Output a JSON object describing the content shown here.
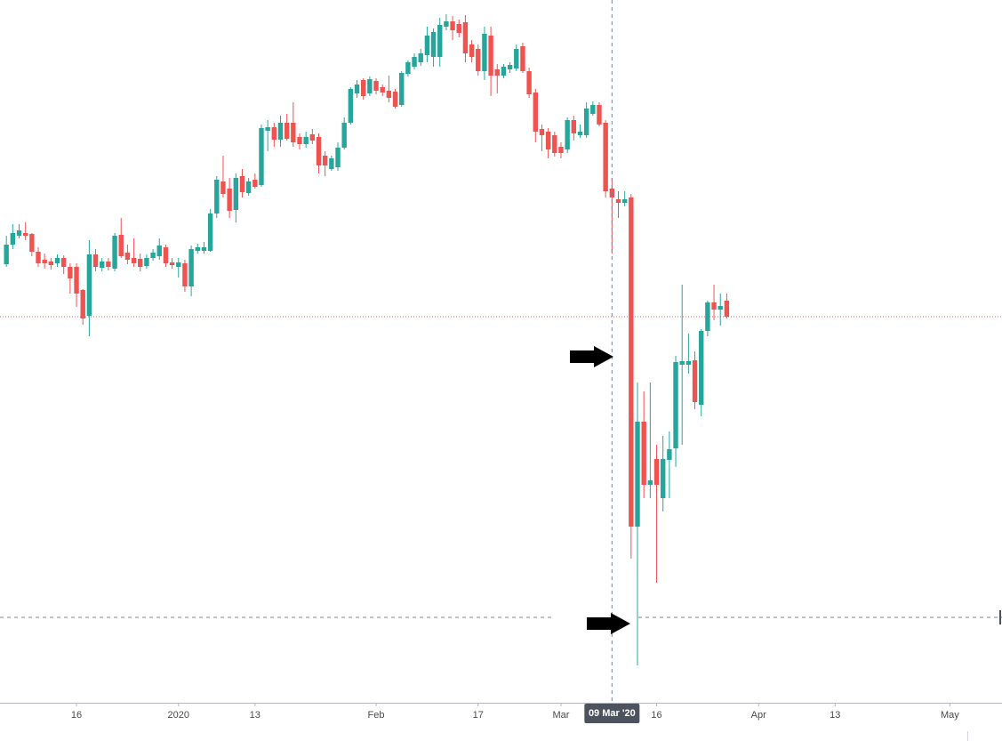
{
  "chart_data": {
    "type": "candlestick",
    "up_color": "#26a69a",
    "down_color": "#ef5350",
    "xlim": [
      -12,
      145.18
    ],
    "ylim": [
      10,
      800
    ],
    "xticks": [
      {
        "value": 0,
        "label": "16"
      },
      {
        "value": 16,
        "label": "2020"
      },
      {
        "value": 28,
        "label": "13"
      },
      {
        "value": 47,
        "label": "Feb"
      },
      {
        "value": 63,
        "label": "17"
      },
      {
        "value": 76,
        "label": "Mar"
      },
      {
        "value": 91,
        "label": "16"
      },
      {
        "value": 107,
        "label": "Apr"
      },
      {
        "value": 119,
        "label": "13"
      },
      {
        "value": 137,
        "label": "May"
      }
    ],
    "crosshair": {
      "x": 84,
      "y": 106,
      "label": "09 Mar '20"
    },
    "x": [
      -11,
      -10,
      -9,
      -8,
      -7,
      -6,
      -5,
      -4,
      -3,
      -2,
      -1,
      0,
      1,
      2,
      3,
      4,
      5,
      6,
      7,
      8,
      9,
      10,
      11,
      12,
      13,
      14,
      15,
      16,
      17,
      18,
      19,
      20,
      21,
      22,
      23,
      24,
      25,
      26,
      27,
      28,
      29,
      30,
      31,
      32,
      33,
      34,
      35,
      36,
      37,
      38,
      39,
      40,
      41,
      42,
      43,
      44,
      45,
      46,
      47,
      48,
      49,
      50,
      51,
      52,
      53,
      54,
      55,
      56,
      57,
      58,
      59,
      60,
      61,
      62,
      63,
      64,
      65,
      66,
      67,
      68,
      69,
      70,
      71,
      72,
      73,
      74,
      75,
      76,
      77,
      78,
      79,
      80,
      81,
      82,
      83,
      84,
      85,
      86,
      87,
      88,
      89,
      90,
      91,
      92,
      93,
      94,
      95,
      96,
      97,
      98,
      99,
      100,
      101,
      102
    ],
    "open": [
      503,
      525,
      535,
      538,
      537,
      517,
      508,
      506,
      504,
      510,
      500,
      500,
      474,
      445,
      514,
      499,
      506,
      498,
      536,
      516,
      510,
      509,
      501,
      510,
      512,
      522,
      505,
      500,
      504,
      478,
      518,
      518,
      518,
      560,
      596,
      588,
      564,
      602,
      583,
      598,
      592,
      653,
      657,
      643,
      662,
      662,
      646,
      638,
      649,
      646,
      625,
      610,
      612,
      634,
      662,
      695,
      710,
      695,
      709,
      702,
      698,
      697,
      682,
      717,
      725,
      730,
      738,
      736,
      736,
      770,
      776,
      773,
      775,
      750,
      745,
      720,
      760,
      722,
      715,
      722,
      723,
      748,
      720,
      696,
      655,
      652,
      648,
      635,
      632,
      665,
      648,
      648,
      672,
      682,
      662,
      588,
      576,
      572,
      578,
      208,
      326,
      255,
      284,
      240,
      283,
      296,
      390,
      390,
      395,
      345,
      428,
      460,
      452,
      462
    ],
    "high": [
      535,
      548,
      548,
      550,
      538,
      522,
      515,
      510,
      514,
      513,
      504,
      504,
      475,
      530,
      520,
      510,
      510,
      538,
      555,
      525,
      532,
      515,
      514,
      520,
      532,
      525,
      510,
      510,
      508,
      524,
      526,
      528,
      565,
      602,
      625,
      600,
      605,
      610,
      600,
      605,
      660,
      665,
      662,
      670,
      672,
      685,
      650,
      652,
      655,
      650,
      630,
      625,
      640,
      668,
      702,
      710,
      712,
      714,
      712,
      705,
      715,
      700,
      720,
      732,
      740,
      745,
      770,
      768,
      780,
      784,
      782,
      778,
      783,
      755,
      750,
      770,
      770,
      728,
      728,
      730,
      750,
      752,
      724,
      700,
      660,
      656,
      652,
      640,
      668,
      670,
      660,
      685,
      686,
      685,
      665,
      600,
      585,
      585,
      582,
      370,
      360,
      370,
      300,
      310,
      315,
      400,
      480,
      425,
      405,
      430,
      462,
      480,
      470,
      470
    ],
    "low": [
      500,
      520,
      532,
      530,
      512,
      500,
      498,
      497,
      500,
      492,
      470,
      455,
      435,
      422,
      495,
      495,
      496,
      495,
      510,
      503,
      500,
      495,
      498,
      507,
      508,
      500,
      498,
      488,
      472,
      467,
      515,
      515,
      517,
      555,
      578,
      555,
      550,
      578,
      580,
      588,
      590,
      630,
      635,
      635,
      642,
      635,
      632,
      634,
      638,
      605,
      602,
      608,
      608,
      632,
      660,
      690,
      688,
      692,
      694,
      692,
      685,
      678,
      680,
      714,
      722,
      726,
      730,
      725,
      725,
      766,
      755,
      758,
      730,
      730,
      715,
      710,
      692,
      695,
      712,
      718,
      720,
      718,
      690,
      640,
      630,
      622,
      624,
      622,
      628,
      642,
      645,
      645,
      670,
      658,
      578,
      515,
      555,
      568,
      172,
      52,
      240,
      240,
      145,
      225,
      240,
      275,
      300,
      380,
      340,
      332,
      422,
      440,
      434,
      442
    ],
    "close": [
      525,
      538,
      541,
      535,
      517,
      504,
      504,
      502,
      510,
      500,
      487,
      470,
      442,
      514,
      500,
      506,
      500,
      535,
      512,
      508,
      504,
      500,
      510,
      516,
      524,
      504,
      502,
      505,
      478,
      520,
      522,
      522,
      560,
      598,
      582,
      563,
      600,
      584,
      596,
      590,
      656,
      657,
      643,
      662,
      644,
      640,
      638,
      646,
      642,
      614,
      614,
      622,
      634,
      662,
      700,
      705,
      692,
      711,
      698,
      696,
      690,
      680,
      718,
      730,
      736,
      740,
      760,
      764,
      772,
      776,
      766,
      763,
      740,
      736,
      720,
      762,
      715,
      715,
      725,
      727,
      745,
      720,
      694,
      652,
      648,
      632,
      628,
      628,
      665,
      650,
      652,
      678,
      682,
      660,
      585,
      578,
      572,
      576,
      208,
      326,
      255,
      260,
      255,
      284,
      295,
      393,
      394,
      394,
      348,
      428,
      460,
      452,
      456,
      444
    ]
  }
}
